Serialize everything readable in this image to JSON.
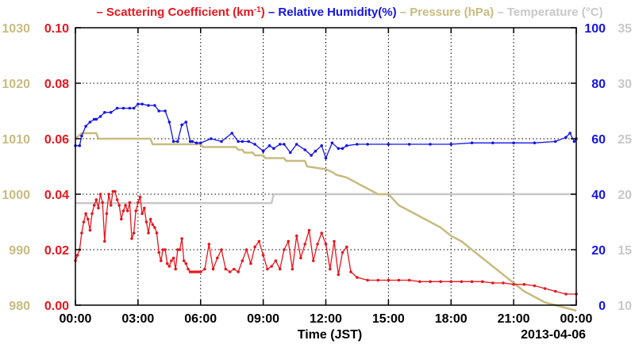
{
  "chart_data": {
    "type": "line",
    "legend": [
      {
        "key": "scattering",
        "prefix": "– ",
        "text": "Scattering Coefficient (km",
        "sup": "-1",
        "suffix": ")",
        "color": "#e8161e"
      },
      {
        "key": "humidity",
        "prefix": "– ",
        "text": "Relative Humidity(%)",
        "sup": "",
        "suffix": "",
        "color": "#1414e6"
      },
      {
        "key": "pressure",
        "prefix": "– ",
        "text": "Pressure (hPa)",
        "sup": "",
        "suffix": "",
        "color": "#c8bb80"
      },
      {
        "key": "temperature",
        "prefix": "– ",
        "text": "Temperature (°C)",
        "sup": "",
        "suffix": "",
        "color": "#c8c8c8"
      }
    ],
    "xlabel": "Time (JST)",
    "date_label": "2013-04-06",
    "x_unit": "hours",
    "xlim": [
      0,
      24
    ],
    "x_ticks": [
      {
        "value": 0,
        "label": "00:00"
      },
      {
        "value": 3,
        "label": "03:00"
      },
      {
        "value": 6,
        "label": "06:00"
      },
      {
        "value": 9,
        "label": "09:00"
      },
      {
        "value": 12,
        "label": "12:00"
      },
      {
        "value": 15,
        "label": "15:00"
      },
      {
        "value": 18,
        "label": "18:00"
      },
      {
        "value": 21,
        "label": "21:00"
      },
      {
        "value": 24,
        "label": "00:00"
      }
    ],
    "axes": {
      "pressure": {
        "ylim": [
          980,
          1030
        ],
        "ticks": [
          "980",
          "990",
          "1000",
          "1010",
          "1020",
          "1030"
        ],
        "color": "#c8bb80"
      },
      "scattering": {
        "ylim": [
          0,
          0.1
        ],
        "ticks": [
          "0.00",
          "0.02",
          "0.04",
          "0.06",
          "0.08",
          "0.10"
        ],
        "color": "#e8161e"
      },
      "humidity": {
        "ylim": [
          0,
          100
        ],
        "ticks": [
          "0",
          "20",
          "40",
          "60",
          "80",
          "100"
        ],
        "color": "#1414e6"
      },
      "temperature": {
        "ylim": [
          10,
          35
        ],
        "ticks": [
          "10",
          "15",
          "20",
          "25",
          "30",
          "35"
        ],
        "color": "#c8c8c8"
      }
    },
    "grid": true,
    "series": [
      {
        "name": "Scattering Coefficient (km-1)",
        "axis": "scattering",
        "color": "#e8161e",
        "markers": true,
        "x": [
          0.0,
          0.1,
          0.2,
          0.3,
          0.4,
          0.5,
          0.6,
          0.7,
          0.8,
          0.9,
          1.0,
          1.1,
          1.2,
          1.3,
          1.4,
          1.5,
          1.6,
          1.7,
          1.8,
          1.9,
          2.0,
          2.1,
          2.2,
          2.3,
          2.4,
          2.5,
          2.6,
          2.7,
          2.8,
          2.9,
          3.0,
          3.1,
          3.2,
          3.3,
          3.4,
          3.5,
          3.6,
          3.7,
          3.8,
          3.9,
          4.0,
          4.1,
          4.2,
          4.3,
          4.4,
          4.5,
          4.6,
          4.7,
          4.8,
          4.9,
          5.0,
          5.1,
          5.2,
          5.3,
          5.4,
          5.5,
          5.6,
          5.7,
          5.8,
          5.9,
          6.0,
          6.2,
          6.4,
          6.6,
          6.8,
          7.0,
          7.2,
          7.4,
          7.6,
          7.8,
          8.0,
          8.2,
          8.4,
          8.6,
          8.8,
          9.0,
          9.2,
          9.4,
          9.6,
          9.8,
          10.0,
          10.2,
          10.4,
          10.6,
          10.8,
          11.0,
          11.2,
          11.4,
          11.6,
          11.8,
          12.0,
          12.2,
          12.4,
          12.6,
          12.8,
          13.0,
          13.2,
          13.5,
          14.0,
          14.5,
          15.0,
          15.5,
          16.0,
          16.5,
          17.0,
          17.5,
          18.0,
          18.5,
          19.0,
          19.5,
          20.0,
          20.5,
          21.0,
          21.5,
          22.0,
          22.5,
          23.0,
          23.5,
          24.0
        ],
        "values": [
          0.016,
          0.018,
          0.02,
          0.026,
          0.03,
          0.033,
          0.031,
          0.027,
          0.033,
          0.036,
          0.038,
          0.035,
          0.04,
          0.037,
          0.023,
          0.033,
          0.04,
          0.036,
          0.041,
          0.041,
          0.038,
          0.036,
          0.031,
          0.034,
          0.036,
          0.034,
          0.037,
          0.024,
          0.026,
          0.034,
          0.037,
          0.039,
          0.033,
          0.035,
          0.03,
          0.026,
          0.031,
          0.029,
          0.028,
          0.026,
          0.019,
          0.016,
          0.02,
          0.02,
          0.015,
          0.014,
          0.016,
          0.017,
          0.013,
          0.02,
          0.02,
          0.024,
          0.016,
          0.015,
          0.013,
          0.012,
          0.012,
          0.012,
          0.012,
          0.012,
          0.012,
          0.013,
          0.022,
          0.013,
          0.017,
          0.02,
          0.013,
          0.012,
          0.013,
          0.012,
          0.016,
          0.02,
          0.015,
          0.021,
          0.023,
          0.018,
          0.013,
          0.014,
          0.016,
          0.013,
          0.02,
          0.023,
          0.013,
          0.025,
          0.017,
          0.022,
          0.027,
          0.016,
          0.022,
          0.026,
          0.022,
          0.013,
          0.023,
          0.011,
          0.019,
          0.021,
          0.012,
          0.01,
          0.009,
          0.009,
          0.009,
          0.009,
          0.009,
          0.0085,
          0.0085,
          0.0085,
          0.0085,
          0.0085,
          0.0085,
          0.0085,
          0.008,
          0.008,
          0.0075,
          0.0075,
          0.007,
          0.006,
          0.005,
          0.004,
          0.004
        ]
      },
      {
        "name": "Relative Humidity(%)",
        "axis": "humidity",
        "color": "#1414e6",
        "markers": true,
        "x": [
          0.0,
          0.2,
          0.3,
          0.5,
          0.7,
          0.9,
          1.0,
          1.2,
          1.4,
          1.7,
          2.0,
          2.3,
          2.6,
          2.8,
          3.0,
          3.2,
          3.5,
          3.8,
          4.0,
          4.3,
          4.5,
          4.7,
          4.9,
          5.1,
          5.3,
          5.5,
          5.6,
          5.8,
          6.0,
          6.5,
          7.0,
          7.5,
          7.8,
          8.0,
          8.3,
          8.6,
          9.0,
          9.3,
          9.5,
          9.8,
          10.0,
          10.3,
          10.6,
          11.0,
          11.3,
          11.5,
          11.8,
          12.0,
          12.3,
          12.6,
          12.8,
          13.0,
          13.5,
          14.0,
          15.0,
          16.0,
          17.0,
          18.0,
          19.0,
          20.0,
          21.0,
          22.0,
          23.0,
          23.5,
          23.7,
          23.9,
          24.0
        ],
        "values": [
          57.5,
          57.5,
          61,
          64.5,
          66,
          67,
          67,
          68,
          69.5,
          69.5,
          71,
          71,
          71,
          71,
          72.5,
          72.5,
          72,
          72,
          70,
          70,
          66,
          59,
          59,
          65,
          66,
          59,
          59,
          58.5,
          58.5,
          60,
          59,
          62,
          59,
          59,
          59,
          58,
          55.5,
          57.5,
          56.5,
          58,
          58,
          55,
          58,
          56,
          54,
          55.5,
          57.5,
          53,
          58.5,
          56.5,
          56.5,
          57.5,
          58,
          58,
          58,
          58,
          58,
          58,
          58.5,
          58.5,
          58.5,
          58.5,
          59,
          60.5,
          62,
          59,
          60
        ]
      },
      {
        "name": "Pressure (hPa)",
        "axis": "pressure",
        "color": "#c8bb80",
        "markers": false,
        "x": [
          0.0,
          0.3,
          0.5,
          1.0,
          1.1,
          3.6,
          3.7,
          6.0,
          6.1,
          7.7,
          7.8,
          8.0,
          8.1,
          8.5,
          8.6,
          9.0,
          9.1,
          10.0,
          10.1,
          11.0,
          11.1,
          12.0,
          12.3,
          12.5,
          13.0,
          13.5,
          14.0,
          14.5,
          15.0,
          15.5,
          16.0,
          16.5,
          17.0,
          17.5,
          18.0,
          18.5,
          19.0,
          19.5,
          20.0,
          20.5,
          21.0,
          21.5,
          22.0,
          22.5,
          23.0,
          23.5,
          24.0
        ],
        "values": [
          1010,
          1011,
          1011,
          1011,
          1010,
          1010,
          1009,
          1009,
          1008.5,
          1008.5,
          1008,
          1008,
          1007.5,
          1007.5,
          1007,
          1007,
          1006.5,
          1006.5,
          1006,
          1006,
          1005,
          1004.5,
          1004,
          1003.5,
          1003,
          1002,
          1001,
          1000,
          1000,
          998,
          997,
          996,
          995,
          994,
          992.5,
          991.5,
          990,
          988.5,
          987,
          985.5,
          984,
          982.5,
          981.5,
          980.5,
          980,
          979.5,
          979
        ]
      },
      {
        "name": "Temperature (°C)",
        "axis": "temperature",
        "color": "#c8c8c8",
        "markers": false,
        "x": [
          0.0,
          9.4,
          9.5,
          24.0
        ],
        "values": [
          19.2,
          19.2,
          20.0,
          20.0
        ]
      }
    ]
  }
}
